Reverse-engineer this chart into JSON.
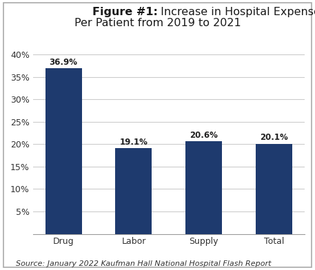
{
  "categories": [
    "Drug",
    "Labor",
    "Supply",
    "Total"
  ],
  "values": [
    36.9,
    19.1,
    20.6,
    20.1
  ],
  "labels": [
    "36.9%",
    "19.1%",
    "20.6%",
    "20.1%"
  ],
  "bar_color": "#1e3a6e",
  "title_line1_bold": "Figure #1:",
  "title_line1_rest": " Increase in Hospital Expenses",
  "title_line2": "Per Patient from 2019 to 2021",
  "ylim": [
    0,
    42
  ],
  "yticks": [
    5,
    10,
    15,
    20,
    25,
    30,
    35,
    40
  ],
  "ytick_labels": [
    "5%",
    "10%",
    "15%",
    "20%",
    "25%",
    "30%",
    "35%",
    "40%"
  ],
  "source_text": "Source: January 2022 Kaufman Hall National Hospital Flash Report",
  "background_color": "#ffffff",
  "grid_color": "#cccccc",
  "title_fontsize": 11.5,
  "label_fontsize": 8.5,
  "tick_fontsize": 9,
  "source_fontsize": 8,
  "bar_width": 0.52
}
